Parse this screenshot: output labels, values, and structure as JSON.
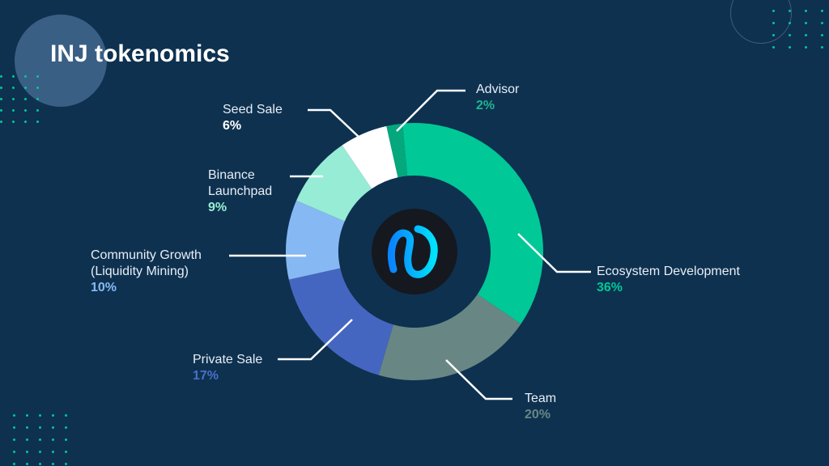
{
  "title": "INJ tokenomics",
  "colors": {
    "background": "#0e3150",
    "accent": "#00c897"
  },
  "center_logo": "injective-logo",
  "chart_data": {
    "type": "pie",
    "title": "INJ tokenomics",
    "donut": true,
    "categories": [
      "Ecosystem Development",
      "Team",
      "Private Sale",
      "Community Growth (Liquidity Mining)",
      "Binance Launchpad",
      "Seed Sale",
      "Advisor"
    ],
    "values": [
      36,
      20,
      17,
      10,
      9,
      6,
      2
    ],
    "unit": "%",
    "colors": [
      "#00c897",
      "#688784",
      "#4566c0",
      "#86b9f3",
      "#97ecd5",
      "#ffffff",
      "#05a77d"
    ],
    "labels": [
      {
        "name": [
          "Ecosystem Development"
        ],
        "pct": "36%",
        "pct_color": "#00c897"
      },
      {
        "name": [
          "Team"
        ],
        "pct": "20%",
        "pct_color": "#688784"
      },
      {
        "name": [
          "Private Sale"
        ],
        "pct": "17%",
        "pct_color": "#4a6fc9"
      },
      {
        "name": [
          "Community Growth",
          "(Liquidity Mining)"
        ],
        "pct": "10%",
        "pct_color": "#86b9f3"
      },
      {
        "name": [
          "Binance",
          "Launchpad"
        ],
        "pct": "9%",
        "pct_color": "#97ecd5"
      },
      {
        "name": [
          "Seed Sale"
        ],
        "pct": "6%",
        "pct_color": "#ffffff"
      },
      {
        "name": [
          "Advisor"
        ],
        "pct": "2%",
        "pct_color": "#1fb58f"
      }
    ]
  }
}
